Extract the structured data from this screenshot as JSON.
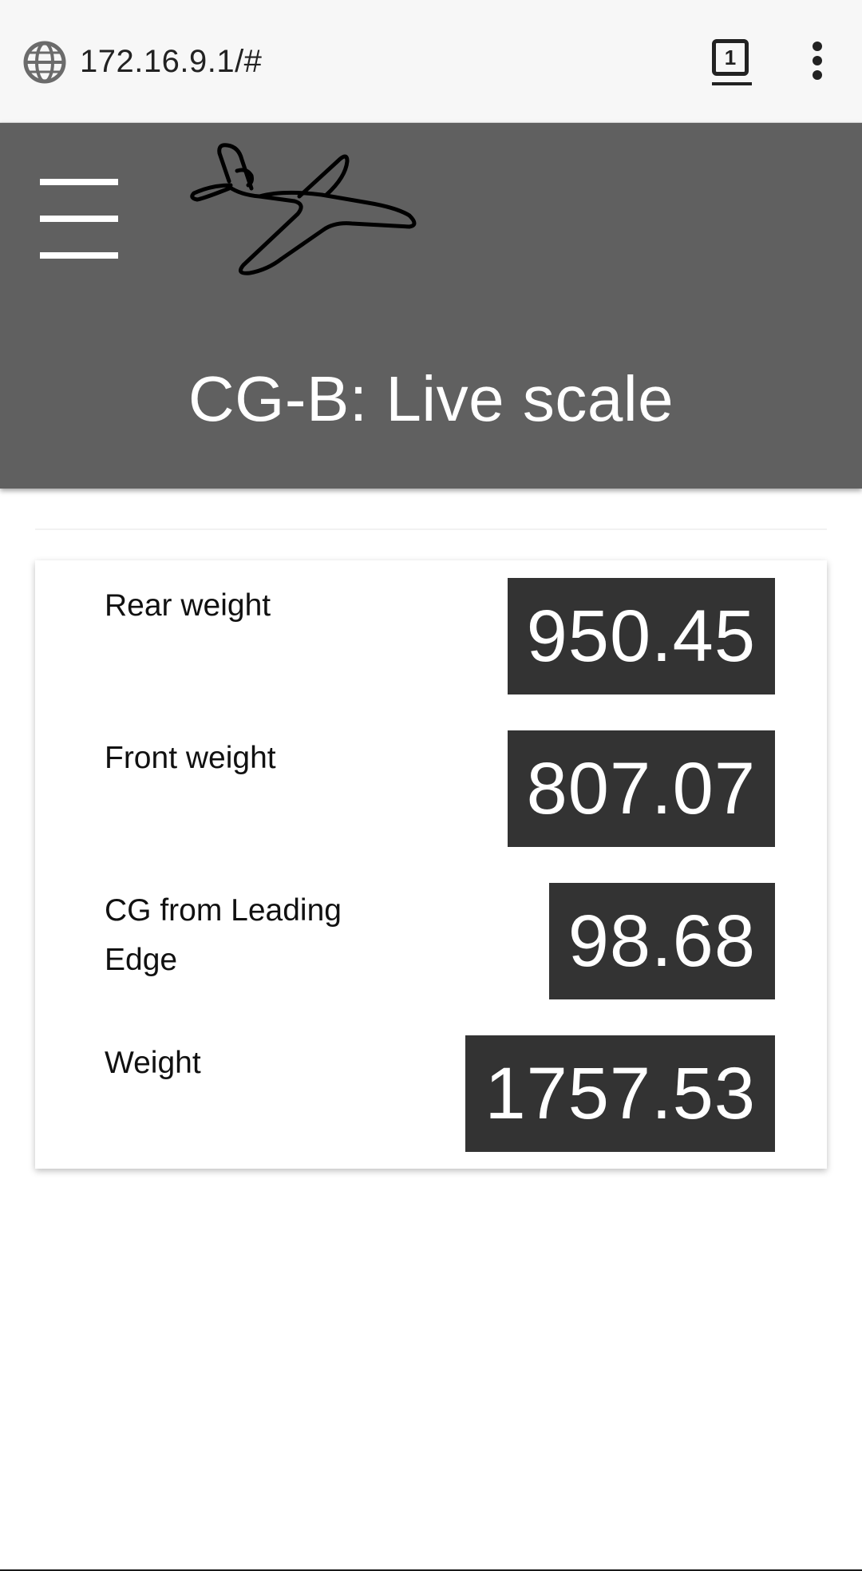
{
  "browser": {
    "url": "172.16.9.1/#",
    "tab_count": "1",
    "globe_icon": "globe-icon",
    "menu_icon": "more-vert-icon"
  },
  "header": {
    "menu_icon": "hamburger-menu-icon",
    "logo_icon": "airplane-icon",
    "title": "CG-B: Live scale",
    "background_color": "#606060"
  },
  "readings": [
    {
      "label": "Rear weight",
      "value": "950.45"
    },
    {
      "label": "Front weight",
      "value": "807.07"
    },
    {
      "label": "CG from Leading Edge",
      "value": "98.68"
    },
    {
      "label": "Weight",
      "value": "1757.53"
    }
  ],
  "colors": {
    "value_background": "#333333",
    "value_text": "#ffffff"
  }
}
